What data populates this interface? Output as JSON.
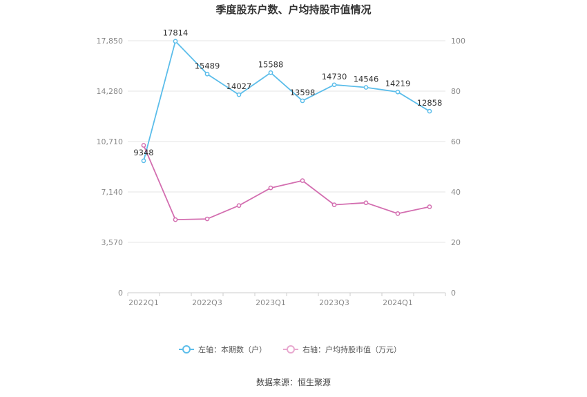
{
  "chart_data": {
    "type": "line",
    "title": "季度股东户数、户均持股市值情况",
    "categories": [
      "2022Q1",
      "2022Q2",
      "2022Q3",
      "2022Q4",
      "2023Q1",
      "2023Q2",
      "2023Q3",
      "2023Q4",
      "2024Q1",
      "2024Q2"
    ],
    "x_tick_labels": [
      "2022Q1",
      "",
      "2022Q3",
      "",
      "2023Q1",
      "",
      "2023Q3",
      "",
      "2024Q1",
      ""
    ],
    "left_axis": {
      "min": 0,
      "max": 17850,
      "ticks": [
        0,
        3570,
        7140,
        10710,
        14280,
        17850
      ],
      "tick_labels": [
        "0",
        "3,570",
        "7,140",
        "10,710",
        "14,280",
        "17,850"
      ]
    },
    "right_axis": {
      "min": 0,
      "max": 100,
      "ticks": [
        0,
        20,
        40,
        60,
        80,
        100
      ],
      "tick_labels": [
        "0",
        "20",
        "40",
        "60",
        "80",
        "100"
      ]
    },
    "series": [
      {
        "name": "左轴：本期数（户）",
        "axis": "left",
        "color": "#5bbdea",
        "values": [
          9348,
          17814,
          15489,
          14027,
          15588,
          13598,
          14730,
          14546,
          14219,
          12858
        ],
        "labels": [
          "9348",
          "17814",
          "15489",
          "14027",
          "15588",
          "13598",
          "14730",
          "14546",
          "14219",
          "12858"
        ]
      },
      {
        "name": "右轴：户均持股市值（万元）",
        "axis": "right",
        "color": "#d36eb0",
        "values": [
          58.5,
          29.0,
          29.3,
          34.6,
          41.6,
          44.5,
          34.9,
          35.7,
          31.4,
          34.1
        ]
      }
    ],
    "grid": true,
    "legend_position": "bottom"
  },
  "source": "数据来源：恒生聚源"
}
